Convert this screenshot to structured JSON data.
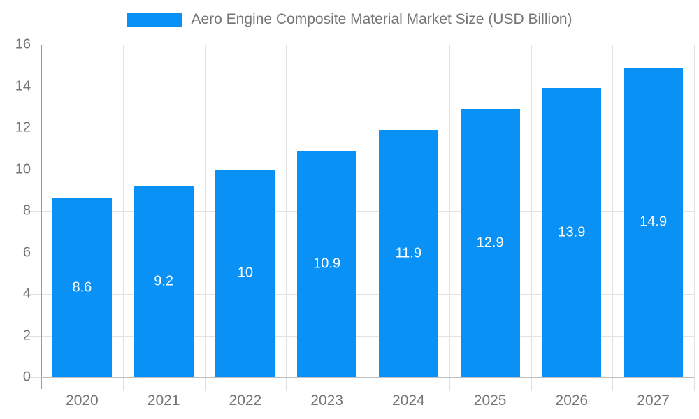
{
  "legend": {
    "label": "Aero Engine Composite Material Market Size (USD Billion)"
  },
  "chart_data": {
    "type": "bar",
    "title": "Aero Engine Composite Material Market Size (USD Billion)",
    "categories": [
      "2020",
      "2021",
      "2022",
      "2023",
      "2024",
      "2025",
      "2026",
      "2027"
    ],
    "values": [
      8.6,
      9.2,
      10,
      10.9,
      11.9,
      12.9,
      13.9,
      14.9
    ],
    "value_labels": [
      "8.6",
      "9.2",
      "10",
      "10.9",
      "11.9",
      "12.9",
      "13.9",
      "14.9"
    ],
    "xlabel": "",
    "ylabel": "",
    "ylim": [
      0,
      16
    ],
    "yticks": [
      0,
      2,
      4,
      6,
      8,
      10,
      12,
      14,
      16
    ],
    "grid": true,
    "legend_position": "top",
    "colors": {
      "bar": "#0991f5",
      "value_label": "#ffffff",
      "axis_text": "#757575",
      "gridline": "#e3e3e3"
    }
  }
}
